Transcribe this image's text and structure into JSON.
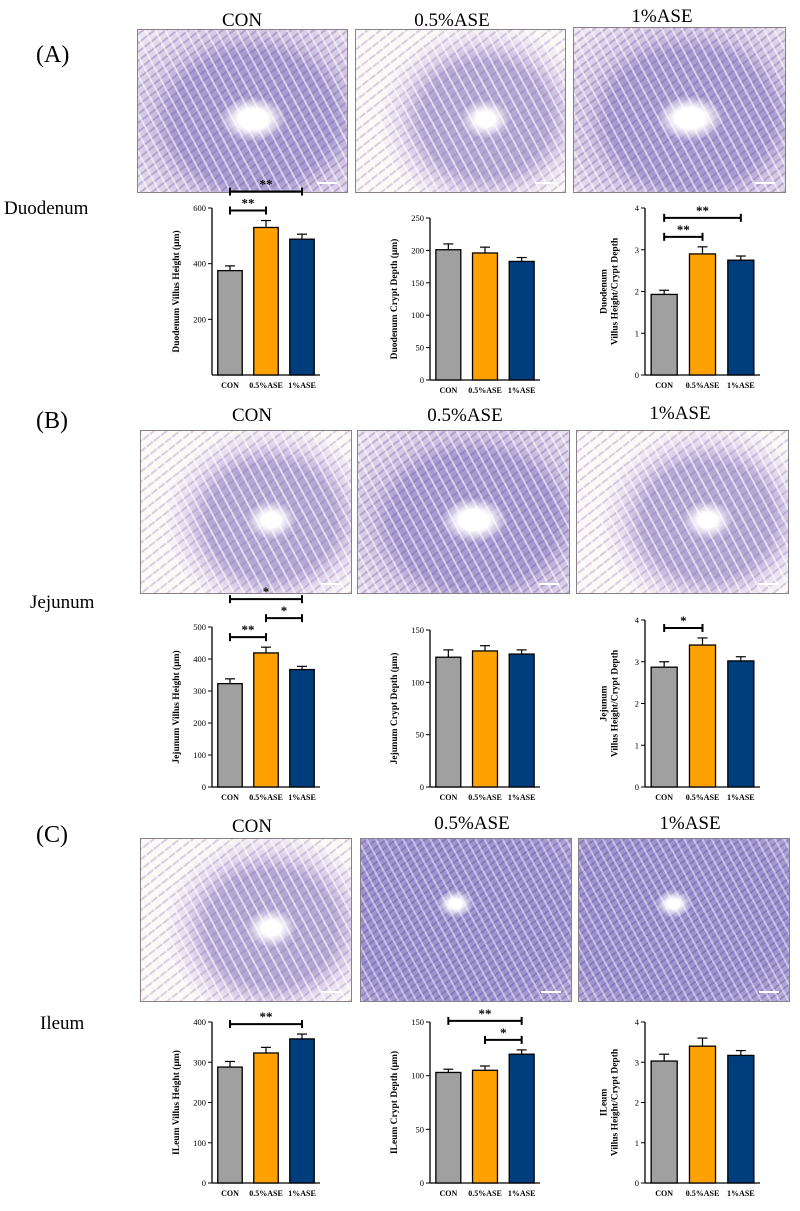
{
  "panels": [
    {
      "letter": "(A)",
      "region": "Duodenum",
      "images": [
        "CON",
        "0.5%ASE",
        "1%ASE"
      ]
    },
    {
      "letter": "(B)",
      "region": "Jejunum",
      "images": [
        "CON",
        "0.5%ASE",
        "1%ASE"
      ]
    },
    {
      "letter": "(C)",
      "region": "Ileum",
      "images": [
        "CON",
        "0.5%ASE",
        "1%ASE"
      ]
    }
  ],
  "colors": {
    "CON": "#a0a0a0",
    "0.5%ASE": "#ffa100",
    "1%ASE": "#003d7c"
  },
  "chart_data": [
    {
      "type": "bar",
      "ylabel": "Duodenum Villus Height (μm)",
      "categories": [
        "CON",
        "0.5%ASE",
        "1%ASE"
      ],
      "values": [
        375,
        530,
        488
      ],
      "errors": [
        17,
        25,
        18
      ],
      "ylim": [
        0,
        600
      ],
      "yticks": [
        200,
        400,
        600
      ],
      "sig": [
        {
          "from": 0,
          "to": 1,
          "label": "**"
        },
        {
          "from": 0,
          "to": 2,
          "label": "**"
        }
      ]
    },
    {
      "type": "bar",
      "ylabel": "Duodenum Crypt Depth (μm)",
      "categories": [
        "CON",
        "0.5%ASE",
        "1%ASE"
      ],
      "values": [
        201,
        196,
        183
      ],
      "errors": [
        9,
        9,
        6
      ],
      "ylim": [
        0,
        250
      ],
      "yticks": [
        0,
        50,
        100,
        150,
        200,
        250
      ],
      "sig": []
    },
    {
      "type": "bar",
      "ylabel": "Duodenum Villus Height/Crypt Depth",
      "categories": [
        "CON",
        "0.5%ASE",
        "1%ASE"
      ],
      "values": [
        1.93,
        2.9,
        2.75
      ],
      "errors": [
        0.1,
        0.17,
        0.1
      ],
      "ylim": [
        0,
        4
      ],
      "yticks": [
        0,
        1,
        2,
        3,
        4
      ],
      "sig": [
        {
          "from": 0,
          "to": 1,
          "label": "**"
        },
        {
          "from": 0,
          "to": 2,
          "label": "**"
        }
      ]
    },
    {
      "type": "bar",
      "ylabel": "Jejunum Villus Height (μm)",
      "categories": [
        "CON",
        "0.5%ASE",
        "1%ASE"
      ],
      "values": [
        323,
        419,
        367
      ],
      "errors": [
        15,
        18,
        10
      ],
      "ylim": [
        0,
        500
      ],
      "yticks": [
        0,
        100,
        200,
        300,
        400,
        500
      ],
      "sig": [
        {
          "from": 0,
          "to": 1,
          "label": "**"
        },
        {
          "from": 1,
          "to": 2,
          "label": "*"
        },
        {
          "from": 0,
          "to": 2,
          "label": "*"
        }
      ]
    },
    {
      "type": "bar",
      "ylabel": "Jejunum Crypt Depth (μm)",
      "categories": [
        "CON",
        "0.5%ASE",
        "1%ASE"
      ],
      "values": [
        124,
        130,
        127
      ],
      "errors": [
        7,
        5,
        4
      ],
      "ylim": [
        0,
        150
      ],
      "yticks": [
        0,
        50,
        100,
        150
      ],
      "sig": []
    },
    {
      "type": "bar",
      "ylabel": "Jejunum Villus Height/Crypt Depth",
      "categories": [
        "CON",
        "0.5%ASE",
        "1%ASE"
      ],
      "values": [
        2.87,
        3.4,
        3.02
      ],
      "errors": [
        0.13,
        0.17,
        0.1
      ],
      "ylim": [
        0,
        4
      ],
      "yticks": [
        0,
        1,
        2,
        3,
        4
      ],
      "sig": [
        {
          "from": 0,
          "to": 1,
          "label": "*"
        }
      ]
    },
    {
      "type": "bar",
      "ylabel": "ILeum Villus Height (μm)",
      "categories": [
        "CON",
        "0.5%ASE",
        "1%ASE"
      ],
      "values": [
        288,
        323,
        358
      ],
      "errors": [
        14,
        14,
        12
      ],
      "ylim": [
        0,
        400
      ],
      "yticks": [
        0,
        100,
        200,
        300,
        400
      ],
      "sig": [
        {
          "from": 0,
          "to": 2,
          "label": "**"
        }
      ]
    },
    {
      "type": "bar",
      "ylabel": "ILeum Crypt Depth (μm)",
      "categories": [
        "CON",
        "0.5%ASE",
        "1%ASE"
      ],
      "values": [
        103,
        105,
        120
      ],
      "errors": [
        3,
        4,
        4
      ],
      "ylim": [
        0,
        150
      ],
      "yticks": [
        0,
        50,
        100,
        150
      ],
      "sig": [
        {
          "from": 0,
          "to": 2,
          "label": "**"
        },
        {
          "from": 1,
          "to": 2,
          "label": "*"
        }
      ]
    },
    {
      "type": "bar",
      "ylabel": "ILeum Villus Height/Crypt Depth",
      "categories": [
        "CON",
        "0.5%ASE",
        "1%ASE"
      ],
      "values": [
        3.03,
        3.4,
        3.17
      ],
      "errors": [
        0.17,
        0.2,
        0.12
      ],
      "ylim": [
        0,
        4
      ],
      "yticks": [
        0,
        1,
        2,
        3,
        4
      ],
      "sig": []
    }
  ]
}
